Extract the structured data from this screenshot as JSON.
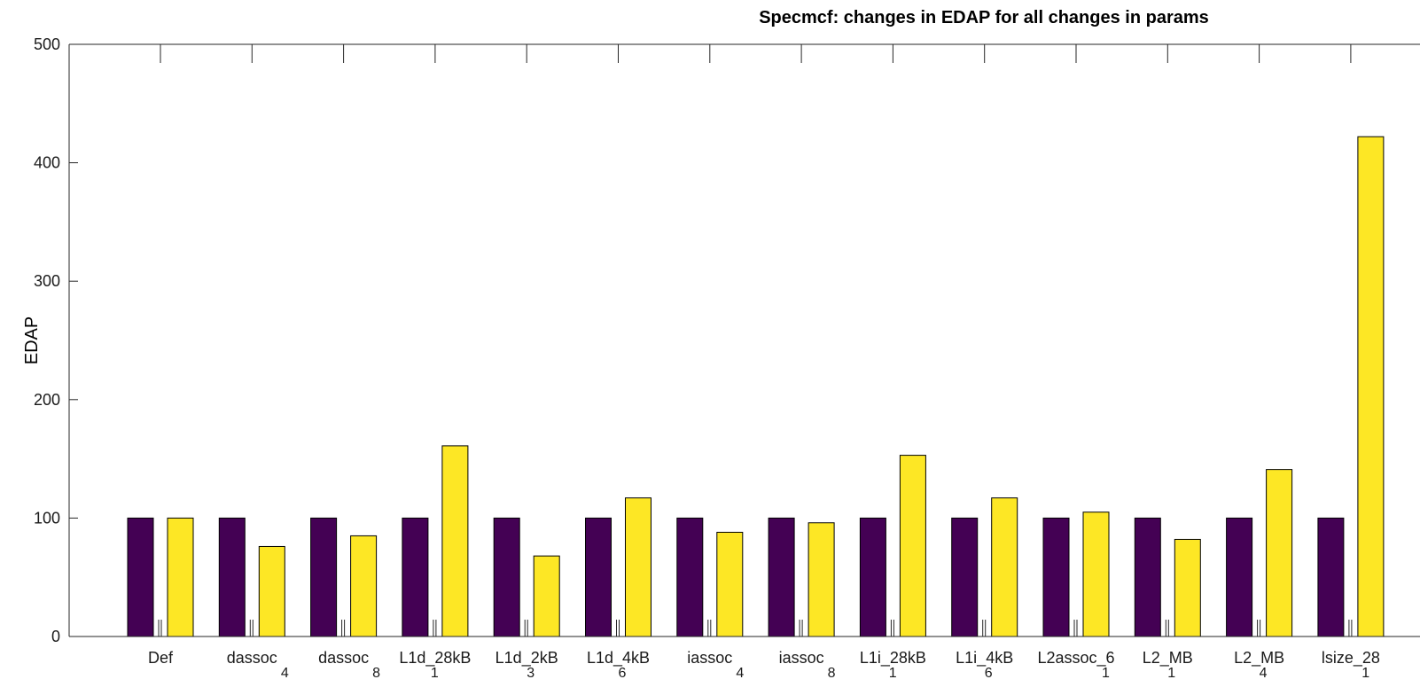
{
  "chart_data": {
    "type": "bar",
    "title": "Specmcf: changes in EDAP for all changes in params",
    "xlabel": "",
    "ylabel": "EDAP",
    "ylim": [
      0,
      500
    ],
    "yticks": [
      "0",
      "100",
      "200",
      "300",
      "400",
      "500"
    ],
    "grid": false,
    "categories": [
      {
        "main": "Def",
        "sub": ""
      },
      {
        "main": "dassoc",
        "sub": "4"
      },
      {
        "main": "dassoc",
        "sub": "8"
      },
      {
        "main": "L1d_28kB",
        "sub": "1"
      },
      {
        "main": "L1d_2kB",
        "sub": "3"
      },
      {
        "main": "L1d_4kB",
        "sub": "6"
      },
      {
        "main": "iassoc",
        "sub": "4"
      },
      {
        "main": "iassoc",
        "sub": "8"
      },
      {
        "main": "L1i_28kB",
        "sub": "1"
      },
      {
        "main": "L1i_4kB",
        "sub": "6"
      },
      {
        "main": "L2assoc_6",
        "sub": "1"
      },
      {
        "main": "L2_MB",
        "sub": "1"
      },
      {
        "main": "L2_MB",
        "sub": "4"
      },
      {
        "main": "lsize_28",
        "sub": "1"
      }
    ],
    "series": [
      {
        "color": "#440154",
        "values": [
          100,
          100,
          100,
          100,
          100,
          100,
          100,
          100,
          100,
          100,
          100,
          100,
          100,
          100
        ]
      },
      {
        "color": "#fde725",
        "values": [
          100,
          76,
          85,
          161,
          68,
          117,
          88,
          96,
          153,
          117,
          105,
          82,
          141,
          422
        ]
      }
    ]
  }
}
